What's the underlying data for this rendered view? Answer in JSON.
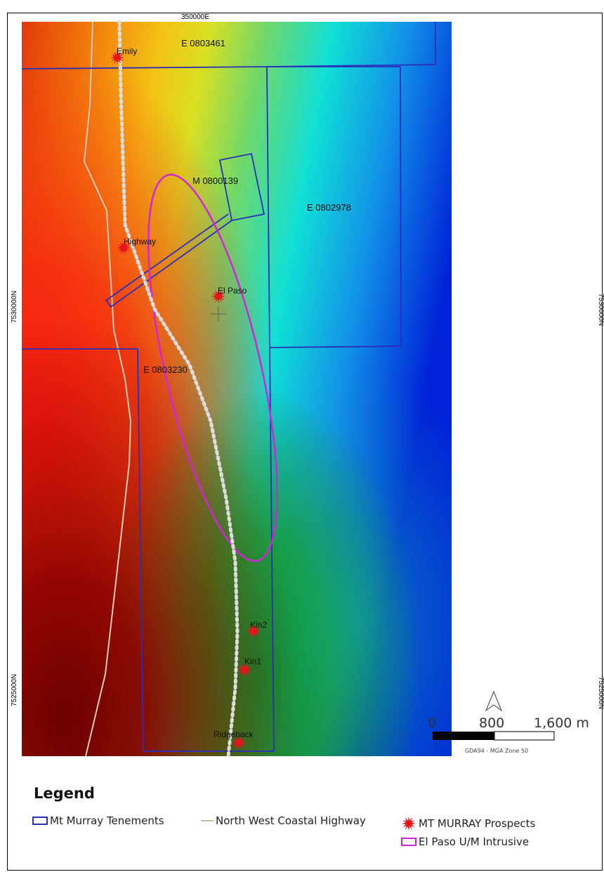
{
  "grid": {
    "top_easting": "350000E",
    "left_northing_a": "7530000N",
    "left_northing_b": "7525000N",
    "right_northing_a": "7530000N",
    "right_northing_b": "7525000N"
  },
  "tenements": [
    {
      "id": "E 0803461"
    },
    {
      "id": "M 0800139"
    },
    {
      "id": "E 0802978"
    },
    {
      "id": "E 0803230"
    }
  ],
  "prospects": [
    {
      "name": "Emily"
    },
    {
      "name": "Highway"
    },
    {
      "name": "El Paso"
    },
    {
      "name": "Kin2"
    },
    {
      "name": "Kin1"
    },
    {
      "name": "Ridgeback"
    }
  ],
  "scale_bar": {
    "label_0": "0",
    "label_1": "800",
    "label_2": "1,600 m",
    "datum": "GDA94 - MGA Zone 50"
  },
  "legend": {
    "title": "Legend",
    "tenements_label": "Mt Murray Tenements",
    "highway_label": "North West Coastal Highway",
    "prospects_label": "MT MURRAY Prospects",
    "intrusive_label": "El Paso U/M Intrusive"
  },
  "colors": {
    "tenement": "#2b2fb8",
    "highway": "#c9b8a0",
    "prospect": "#e8141a",
    "intrusive": "#d224d8"
  }
}
